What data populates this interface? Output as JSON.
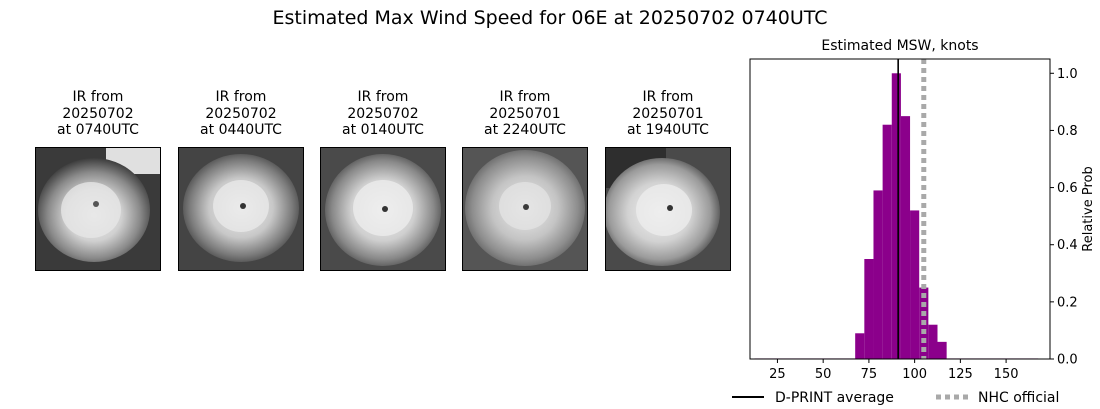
{
  "title": "Estimated Max Wind Speed for 06E at 20250702 0740UTC",
  "panels": [
    {
      "line1": "IR from",
      "line2": "20250702",
      "line3": "at 0740UTC"
    },
    {
      "line1": "IR from",
      "line2": "20250702",
      "line3": "at 0440UTC"
    },
    {
      "line1": "IR from",
      "line2": "20250702",
      "line3": "at 0140UTC"
    },
    {
      "line1": "IR from",
      "line2": "20250701",
      "line3": "at 2240UTC"
    },
    {
      "line1": "IR from",
      "line2": "20250701",
      "line3": "at 1940UTC"
    }
  ],
  "chart_data": {
    "type": "bar",
    "title": "Estimated MSW, knots",
    "xlabel": "",
    "ylabel": "Relative Prob",
    "xlim": [
      10,
      174
    ],
    "ylim": [
      0,
      1.05
    ],
    "x_ticks": [
      25,
      50,
      75,
      100,
      125,
      150
    ],
    "y_ticks": [
      0.0,
      0.2,
      0.4,
      0.6,
      0.8,
      1.0
    ],
    "y_tick_labels": [
      "0.0",
      "0.2",
      "0.4",
      "0.6",
      "0.8",
      "1.0"
    ],
    "y_axis_side": "right",
    "bar_width": 5,
    "bar_color": "#8b008b",
    "bins": [
      15,
      20,
      25,
      30,
      35,
      40,
      45,
      50,
      55,
      60,
      65,
      70,
      75,
      80,
      85,
      90,
      95,
      100,
      105,
      110,
      115,
      120,
      125,
      130,
      135,
      140,
      145,
      150,
      155,
      160,
      165
    ],
    "values": [
      0.002,
      0.002,
      0.002,
      0.002,
      0.002,
      0.002,
      0.002,
      0.002,
      0.002,
      0.002,
      0.002,
      0.09,
      0.35,
      0.59,
      0.82,
      1.0,
      0.85,
      0.52,
      0.25,
      0.12,
      0.06,
      0.002,
      0.002,
      0.002,
      0.002,
      0.002,
      0.002,
      0.002,
      0.002,
      0.002,
      0.002
    ],
    "lines": [
      {
        "name": "D-PRINT average",
        "x": 91,
        "color": "#000000",
        "style": "solid"
      },
      {
        "name": "NHC official",
        "x": 105,
        "color": "#a9a9a9",
        "style": "dotted"
      }
    ],
    "legend_placement": "bottom"
  }
}
